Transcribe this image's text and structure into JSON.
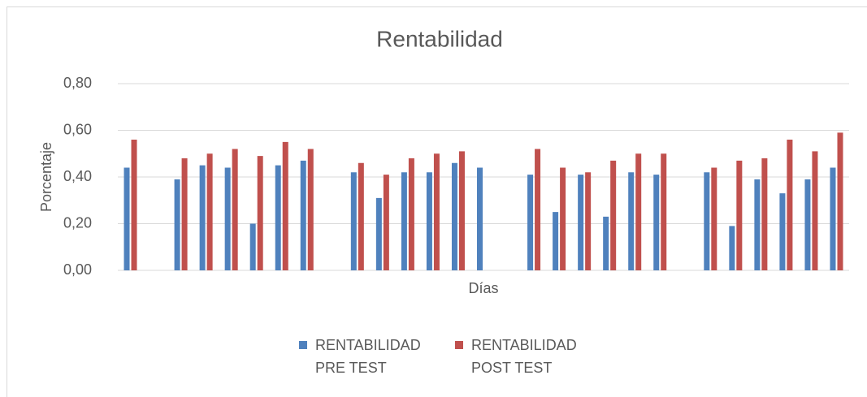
{
  "chart_data": {
    "type": "bar",
    "title": "Rentabilidad",
    "x_label": "Días",
    "y_label": "Porcentaje",
    "categories": [
      null,
      null,
      null,
      null,
      null,
      null,
      null,
      null,
      null,
      null,
      null,
      null,
      null,
      null,
      null,
      null,
      null,
      null,
      null,
      null,
      null,
      null,
      null,
      null,
      null,
      null,
      null,
      null,
      null
    ],
    "series": [
      {
        "name": "RENTABILIDAD PRE TEST",
        "color": "#4f81bd",
        "values": [
          0.44,
          null,
          0.39,
          0.45,
          0.44,
          0.2,
          0.45,
          0.47,
          null,
          0.42,
          0.31,
          0.42,
          0.42,
          0.46,
          0.44,
          null,
          0.41,
          0.25,
          0.41,
          0.23,
          0.42,
          0.41,
          null,
          0.42,
          0.19,
          0.39,
          0.33,
          0.39,
          0.44
        ]
      },
      {
        "name": "RENTABILIDAD POST TEST",
        "color": "#c0504d",
        "values": [
          0.56,
          null,
          0.48,
          0.5,
          0.52,
          0.49,
          0.55,
          0.52,
          null,
          0.46,
          0.41,
          0.48,
          0.5,
          0.51,
          null,
          null,
          0.52,
          0.44,
          0.42,
          0.47,
          0.5,
          0.5,
          null,
          0.44,
          0.47,
          0.48,
          0.56,
          0.51,
          0.59
        ]
      }
    ],
    "ylim": [
      0,
      0.8
    ],
    "yticks": [
      {
        "value": 0,
        "label": "0,00"
      },
      {
        "value": 0.2,
        "label": "0,20"
      },
      {
        "value": 0.4,
        "label": "0,40"
      },
      {
        "value": 0.6,
        "label": "0,60"
      },
      {
        "value": 0.8,
        "label": "0,80"
      }
    ],
    "grid": true,
    "legend": "bottom"
  }
}
